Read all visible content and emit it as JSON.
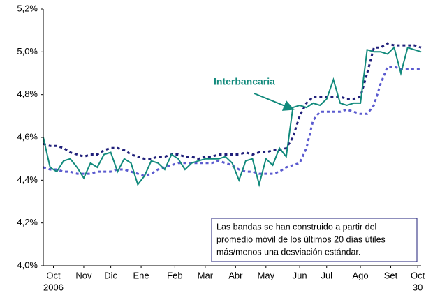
{
  "chart_data": {
    "type": "line",
    "x": [
      0,
      1,
      2,
      3,
      4,
      5,
      6,
      7,
      8,
      9,
      10,
      11,
      12,
      13,
      14,
      15,
      16,
      17,
      18,
      19,
      20,
      21,
      22,
      23,
      24,
      25,
      26,
      27,
      28,
      29,
      30,
      31,
      32,
      33,
      34,
      35,
      36,
      37,
      38,
      39,
      40,
      41,
      42,
      43,
      44,
      45,
      46,
      47,
      48,
      49,
      50,
      51,
      52,
      53,
      54,
      55,
      56
    ],
    "xlim": [
      0,
      56
    ],
    "xticks": [
      {
        "value": 1.5,
        "label": "Oct"
      },
      {
        "value": 6,
        "label": "Nov"
      },
      {
        "value": 10,
        "label": "Dic"
      },
      {
        "value": 14.5,
        "label": "Ene"
      },
      {
        "value": 19.5,
        "label": "Feb"
      },
      {
        "value": 24,
        "label": "Mar"
      },
      {
        "value": 28.5,
        "label": "Abr"
      },
      {
        "value": 33,
        "label": "May"
      },
      {
        "value": 38,
        "label": "Jun"
      },
      {
        "value": 42,
        "label": "Jul"
      },
      {
        "value": 47,
        "label": "Ago"
      },
      {
        "value": 51.5,
        "label": "Set"
      },
      {
        "value": 55.5,
        "label": "Oct"
      }
    ],
    "xtick_sublabels": [
      {
        "value": 1.5,
        "label": "2006"
      },
      {
        "value": 55.5,
        "label": "30"
      }
    ],
    "ylim": [
      4.0,
      5.2
    ],
    "yticks": [
      {
        "value": 4.0,
        "label": "4,0%"
      },
      {
        "value": 4.2,
        "label": "4,2%"
      },
      {
        "value": 4.4,
        "label": "4,4%"
      },
      {
        "value": 4.6,
        "label": "4,6%"
      },
      {
        "value": 4.8,
        "label": "4,8%"
      },
      {
        "value": 5.0,
        "label": "5,0%"
      },
      {
        "value": 5.2,
        "label": "5,2%"
      }
    ],
    "grid": false,
    "series": [
      {
        "name": "Interbancaria",
        "color": "#128a7c",
        "style": "solid",
        "values": [
          4.6,
          4.46,
          4.44,
          4.49,
          4.5,
          4.46,
          4.41,
          4.48,
          4.46,
          4.52,
          4.53,
          4.44,
          4.5,
          4.48,
          4.38,
          4.42,
          4.49,
          4.48,
          4.45,
          4.52,
          4.5,
          4.45,
          4.48,
          4.49,
          4.5,
          4.5,
          4.5,
          4.51,
          4.48,
          4.4,
          4.49,
          4.5,
          4.38,
          4.5,
          4.47,
          4.55,
          4.51,
          4.74,
          4.75,
          4.74,
          4.76,
          4.75,
          4.78,
          4.87,
          4.76,
          4.75,
          4.76,
          4.76,
          5.01,
          5.0,
          5.0,
          4.99,
          5.02,
          4.9,
          5.02,
          5.01,
          5.0
        ]
      },
      {
        "color": "#1f1f7a",
        "style": "dashed",
        "values": [
          4.57,
          4.56,
          4.56,
          4.55,
          4.53,
          4.52,
          4.51,
          4.52,
          4.52,
          4.54,
          4.55,
          4.55,
          4.54,
          4.52,
          4.51,
          4.5,
          4.5,
          4.51,
          4.51,
          4.52,
          4.52,
          4.51,
          4.51,
          4.5,
          4.51,
          4.51,
          4.52,
          4.52,
          4.52,
          4.52,
          4.53,
          4.52,
          4.53,
          4.53,
          4.54,
          4.54,
          4.55,
          4.6,
          4.7,
          4.76,
          4.79,
          4.79,
          4.79,
          4.79,
          4.79,
          4.78,
          4.78,
          4.79,
          4.9,
          5.02,
          5.02,
          5.04,
          5.03,
          5.03,
          5.03,
          5.03,
          5.02
        ]
      },
      {
        "color": "#5a5acf",
        "style": "dashed",
        "values": [
          4.46,
          4.45,
          4.45,
          4.44,
          4.44,
          4.43,
          4.43,
          4.43,
          4.44,
          4.44,
          4.44,
          4.45,
          4.45,
          4.44,
          4.43,
          4.42,
          4.43,
          4.45,
          4.46,
          4.47,
          4.48,
          4.48,
          4.48,
          4.48,
          4.48,
          4.48,
          4.49,
          4.48,
          4.47,
          4.45,
          4.44,
          4.44,
          4.43,
          4.43,
          4.43,
          4.44,
          4.46,
          4.47,
          4.48,
          4.55,
          4.68,
          4.72,
          4.72,
          4.72,
          4.72,
          4.73,
          4.72,
          4.71,
          4.71,
          4.75,
          4.85,
          4.93,
          4.93,
          4.92,
          4.92,
          4.92,
          4.92
        ]
      }
    ],
    "note_lines": [
      "Las bandas se han construido a partir del",
      "promedio móvil de los últimos 20 días útiles",
      "más/menos una desviación estándar."
    ]
  }
}
